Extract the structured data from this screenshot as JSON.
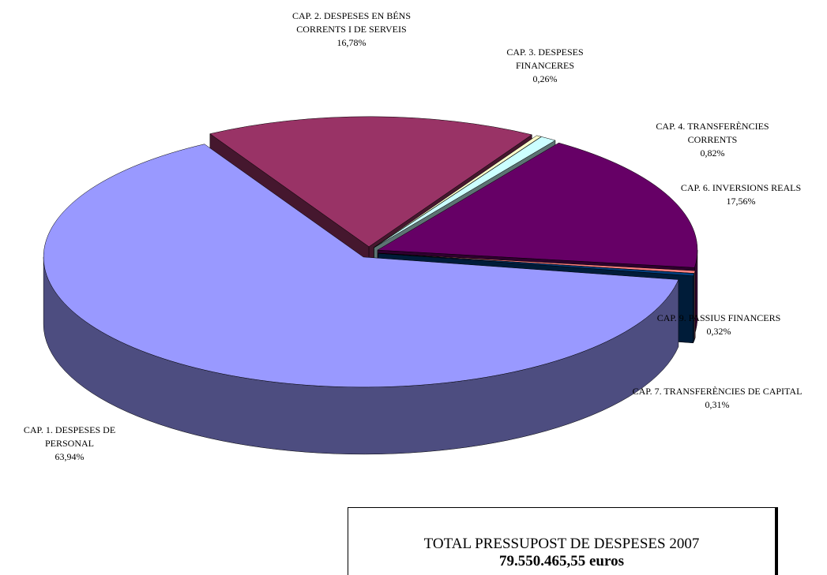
{
  "chart_data": {
    "type": "pie3d",
    "categories": [
      "CAP. 1. DESPESES DE PERSONAL",
      "CAP. 2. DESPESES EN BÉNS CORRENTS I DE SERVEIS",
      "CAP. 3. DESPESES FINANCERES",
      "CAP. 4. TRANSFERÈNCIES CORRENTS",
      "CAP. 6. INVERSIONS REALS",
      "CAP. 9. PASSIUS FINANCERS",
      "CAP. 7. TRANSFERÈNCIES DE CAPITAL"
    ],
    "values": [
      63.94,
      16.78,
      0.26,
      0.82,
      17.56,
      0.32,
      0.31
    ],
    "value_labels": [
      "63,94%",
      "16,78%",
      "0,26%",
      "0,82%",
      "17,56%",
      "0,32%",
      "0,31%"
    ],
    "colors": [
      "#9999ff",
      "#993366",
      "#ffffcc",
      "#ccffff",
      "#660066",
      "#ff8080",
      "#003f7f"
    ]
  },
  "total": {
    "title": "TOTAL PRESSUPOST DE DESPESES 2007",
    "amount": "79.550.465,55 euros"
  }
}
